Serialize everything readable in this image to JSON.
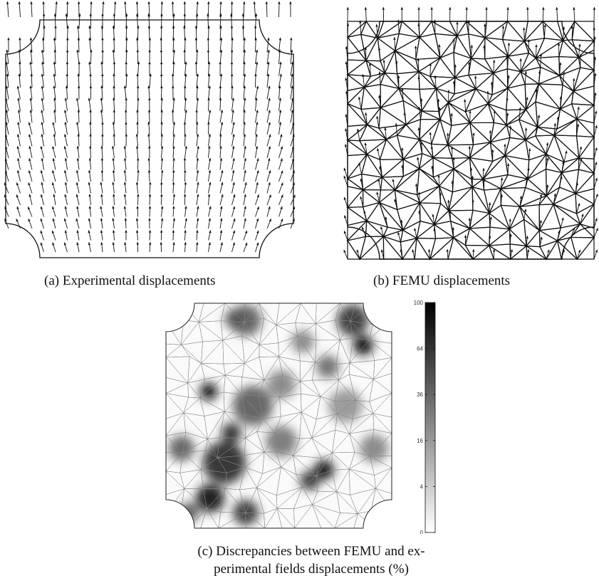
{
  "figures": [
    {
      "id": "a",
      "caption": "(a) Experimental displacements"
    },
    {
      "id": "b",
      "caption": "(b) FEMU displacements"
    },
    {
      "id": "c",
      "caption_line1": "(c) Discrepancies between FEMU and ex-",
      "caption_line2": "perimental fields displacements (%)"
    }
  ],
  "colorbar": {
    "ticks": [
      {
        "label": "100",
        "value": 100
      },
      {
        "label": "64",
        "value": 64
      },
      {
        "label": "36",
        "value": 36
      },
      {
        "label": "16",
        "value": 16
      },
      {
        "label": "4",
        "value": 4
      },
      {
        "label": "0",
        "value": 0
      }
    ],
    "scale": "sqrt",
    "colors": {
      "low": "#ffffff",
      "high": "#000000"
    }
  }
}
